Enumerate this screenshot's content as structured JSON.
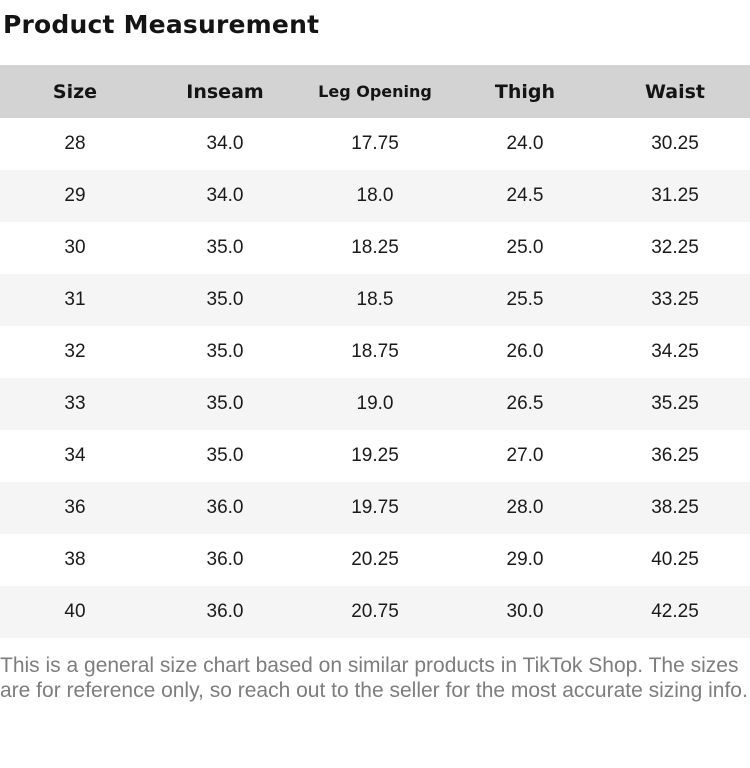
{
  "page": {
    "title": "Product Measurement",
    "disclaimer": "This is a general size chart based on similar products in TikTok Shop. The sizes are for reference only, so reach out to the seller for the most accurate sizing info."
  },
  "table": {
    "columns": [
      "Size",
      "Inseam",
      "Leg Opening",
      "Thigh",
      "Waist"
    ],
    "rows": [
      [
        "28",
        "34.0",
        "17.75",
        "24.0",
        "30.25"
      ],
      [
        "29",
        "34.0",
        "18.0",
        "24.5",
        "31.25"
      ],
      [
        "30",
        "35.0",
        "18.25",
        "25.0",
        "32.25"
      ],
      [
        "31",
        "35.0",
        "18.5",
        "25.5",
        "33.25"
      ],
      [
        "32",
        "35.0",
        "18.75",
        "26.0",
        "34.25"
      ],
      [
        "33",
        "35.0",
        "19.0",
        "26.5",
        "35.25"
      ],
      [
        "34",
        "35.0",
        "19.25",
        "27.0",
        "36.25"
      ],
      [
        "36",
        "36.0",
        "19.75",
        "28.0",
        "38.25"
      ],
      [
        "38",
        "36.0",
        "20.25",
        "29.0",
        "40.25"
      ],
      [
        "40",
        "36.0",
        "20.75",
        "30.0",
        "42.25"
      ]
    ]
  },
  "colors": {
    "header_bg": "#d3d3d3",
    "row_alt_bg": "#f5f5f5",
    "text": "#1a1a1a",
    "disclaimer_text": "#7d7d7d",
    "page_bg": "#ffffff"
  }
}
